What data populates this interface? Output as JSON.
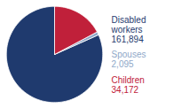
{
  "chart_data": {
    "type": "pie",
    "categories": [
      "Disabled\nworkers",
      "Spouses",
      "Children"
    ],
    "values": [
      161894,
      2095,
      34172
    ],
    "value_labels": [
      "161,894",
      "2,095",
      "34,172"
    ],
    "colors": [
      "#1f3a6e",
      "#8fa8c8",
      "#c0203a"
    ],
    "data_labels": true
  }
}
